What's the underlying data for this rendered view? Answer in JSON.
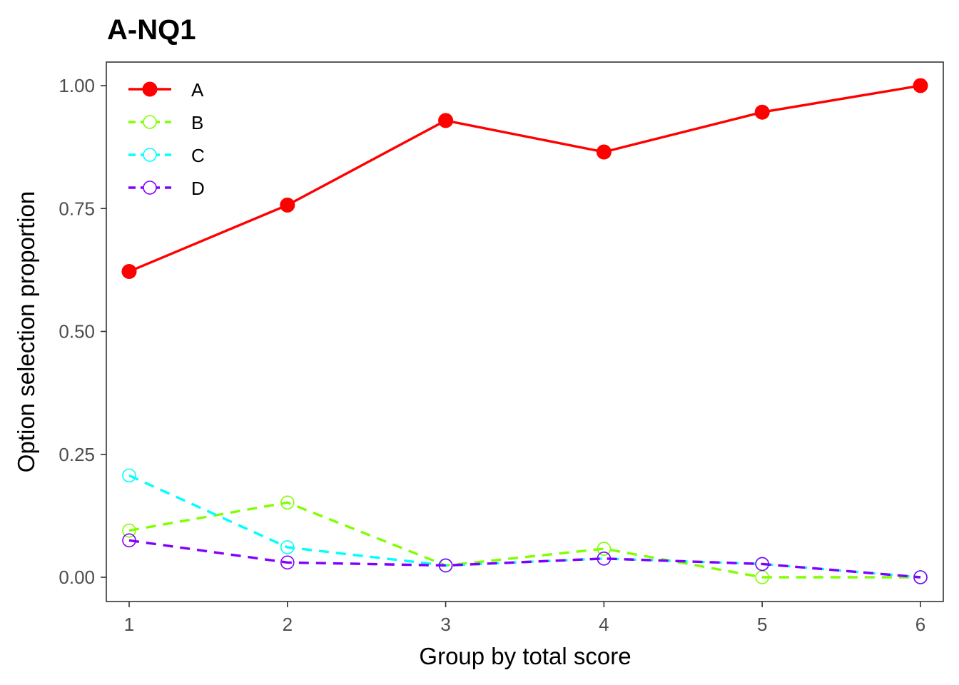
{
  "chart_data": {
    "type": "line",
    "title": "A-NQ1",
    "xlabel": "Group by total score",
    "ylabel": "Option selection proportion",
    "x": [
      1,
      2,
      3,
      4,
      5,
      6
    ],
    "xlim": [
      1,
      6
    ],
    "ylim": [
      0,
      1
    ],
    "xticks": [
      "1",
      "2",
      "3",
      "4",
      "5",
      "6"
    ],
    "yticks": [
      "0.00",
      "0.25",
      "0.50",
      "0.75",
      "1.00"
    ],
    "grid": false,
    "legend_position": "top-left",
    "series": [
      {
        "name": "A",
        "color": "#ff0000",
        "line": "solid",
        "marker": "filled-circle",
        "values": [
          0.622,
          0.757,
          0.929,
          0.865,
          0.946,
          1.0
        ]
      },
      {
        "name": "B",
        "color": "#80ff00",
        "line": "dashed",
        "marker": "open-circle",
        "values": [
          0.095,
          0.152,
          0.024,
          0.058,
          0.0,
          0.0
        ]
      },
      {
        "name": "C",
        "color": "#00ffff",
        "line": "dashed",
        "marker": "open-circle",
        "values": [
          0.207,
          0.061,
          0.024,
          0.038,
          0.027,
          0.0
        ]
      },
      {
        "name": "D",
        "color": "#8000ff",
        "line": "dashed",
        "marker": "open-circle",
        "values": [
          0.075,
          0.03,
          0.024,
          0.038,
          0.027,
          0.0
        ]
      }
    ]
  }
}
